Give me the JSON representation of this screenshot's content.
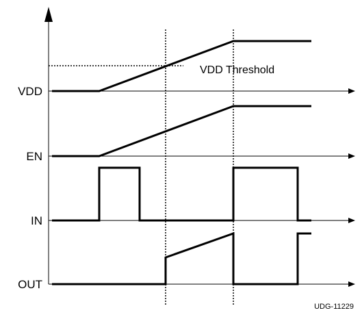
{
  "signals": [
    {
      "name": "VDD"
    },
    {
      "name": "EN"
    },
    {
      "name": "IN"
    },
    {
      "name": "OUT"
    }
  ],
  "annotation": "VDD Threshold",
  "figure_code": "UDG-11229"
}
